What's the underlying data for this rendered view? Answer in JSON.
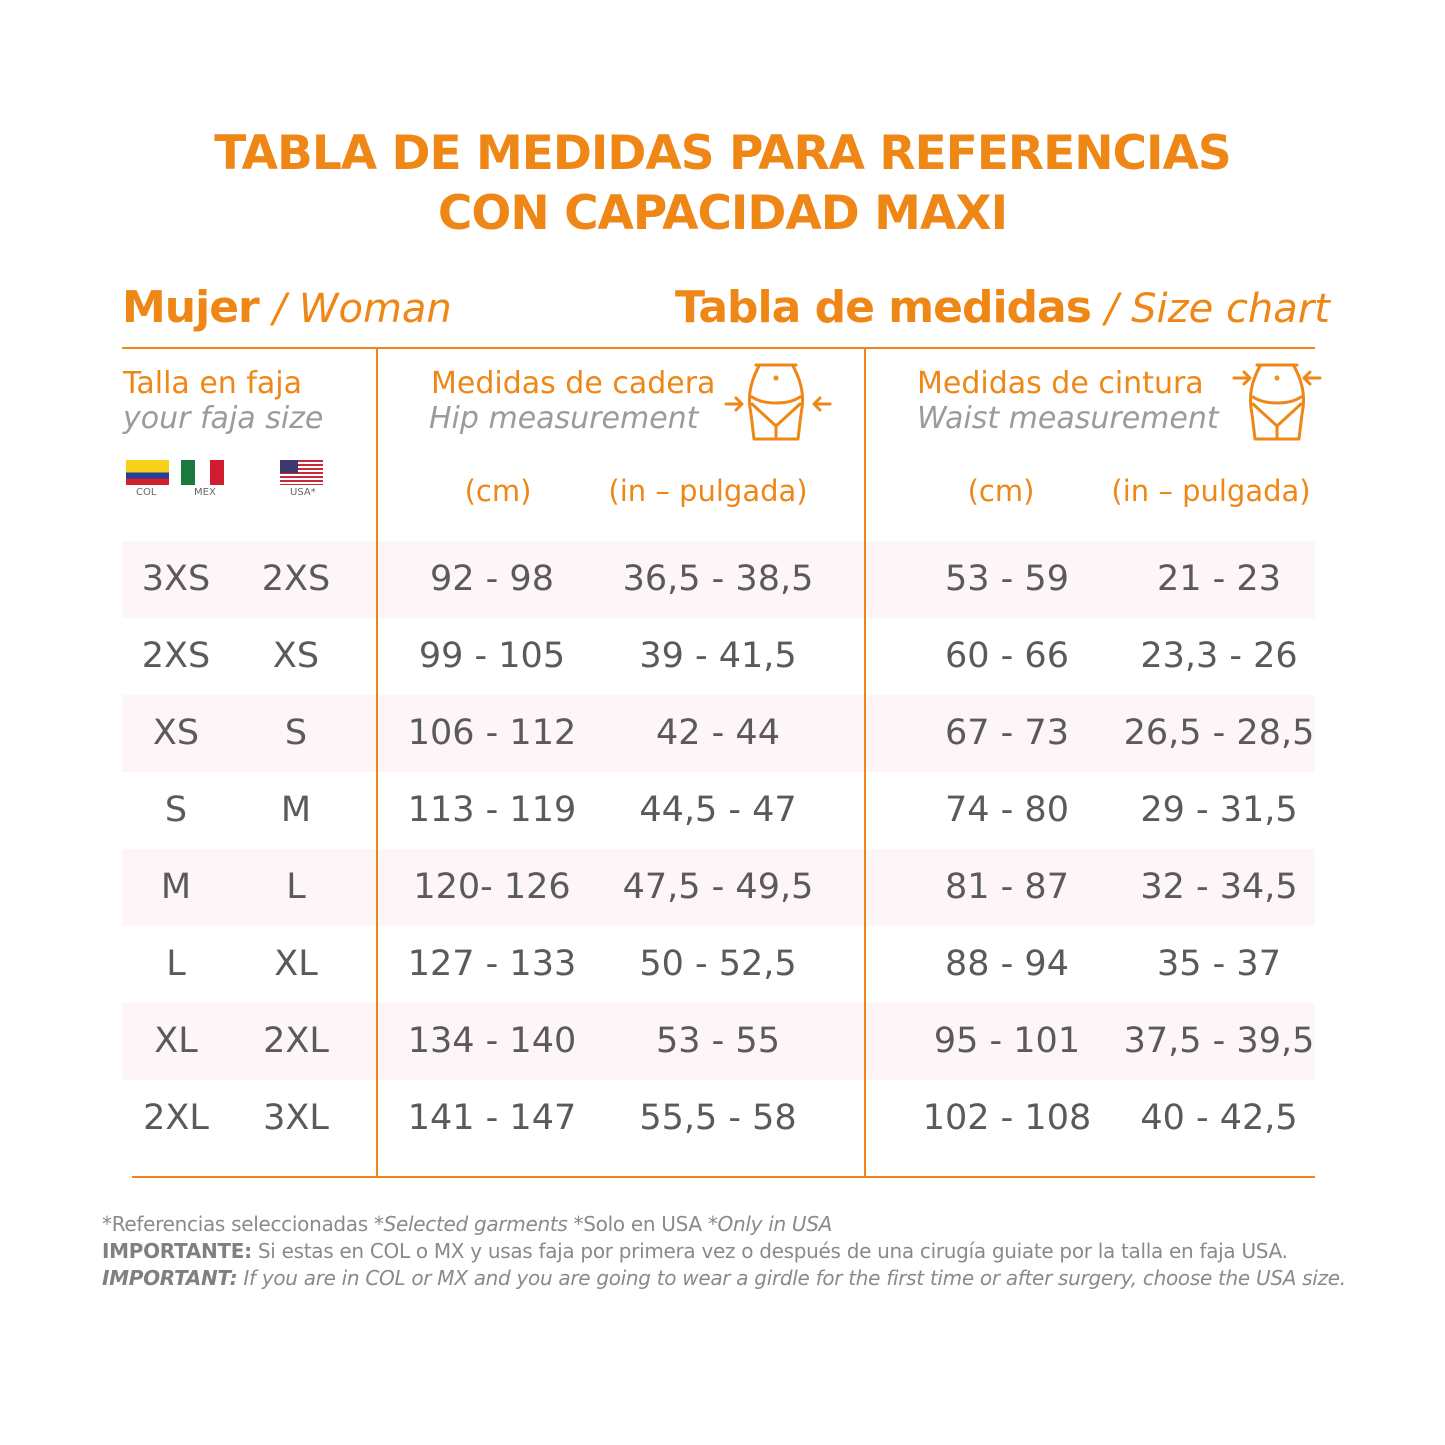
{
  "title": {
    "line1": "TABLA DE MEDIDAS PARA REFERENCIAS",
    "line2": "CON CAPACIDAD MAXI"
  },
  "left_header": {
    "bold": "Mujer",
    "italic": "/ Woman"
  },
  "right_header": {
    "bold": "Tabla de medidas",
    "italic": "/ Size chart"
  },
  "size_col": {
    "title": "Talla en faja",
    "subtitle": "your faja size",
    "flags": [
      "COL",
      "MEX",
      "USA*"
    ]
  },
  "hip_col": {
    "title": "Medidas de cadera",
    "subtitle": "Hip measurement",
    "icon": "hip-body-icon",
    "units": [
      "(cm)",
      "(in – pulgada)"
    ]
  },
  "waist_col": {
    "title": "Medidas de cintura",
    "subtitle": "Waist measurement",
    "icon": "waist-body-icon",
    "units": [
      "(cm)",
      "(in – pulgada)"
    ]
  },
  "rows": [
    [
      "3XS",
      "2XS",
      "92  -  98",
      "36,5  -  38,5",
      "53 - 59",
      "21 - 23"
    ],
    [
      "2XS",
      "XS",
      "99 - 105",
      "39 - 41,5",
      "60 - 66",
      "23,3 - 26"
    ],
    [
      "XS",
      "S",
      "106 - 112",
      "42 - 44",
      "67 - 73",
      "26,5 - 28,5"
    ],
    [
      "S",
      "M",
      "113 - 119",
      "44,5 - 47",
      "74 - 80",
      "29 - 31,5"
    ],
    [
      "M",
      "L",
      "120- 126",
      "47,5 - 49,5",
      "81 - 87",
      "32 - 34,5"
    ],
    [
      "L",
      "XL",
      "127 - 133",
      "50 - 52,5",
      "88 - 94",
      "35 - 37"
    ],
    [
      "XL",
      "2XL",
      "134 - 140",
      "53 - 55",
      "95 - 101",
      "37,5 - 39,5"
    ],
    [
      "2XL",
      "3XL",
      "141 - 147",
      "55,5 - 58",
      "102 - 108",
      "40 - 42,5"
    ]
  ],
  "footer": {
    "line1_a": "*Referencias seleccionadas ",
    "line1_b": "*Selected garments",
    "line1_c": " *Solo en USA ",
    "line1_d": "*Only in USA",
    "line2_bold": "IMPORTANTE:",
    "line2_text": " Si estas en COL o MX y usas faja por primera vez o después de una cirugía guiate por la talla en faja USA.",
    "line3_bold": "IMPORTANT:",
    "line3_text": " If you are in COL or MX and you are going to wear a girdle for the first time or after surgery, choose the USA size."
  },
  "colors": {
    "accent": "#ee8716",
    "text": "#58595b",
    "stripe": "#fdf5f8"
  }
}
